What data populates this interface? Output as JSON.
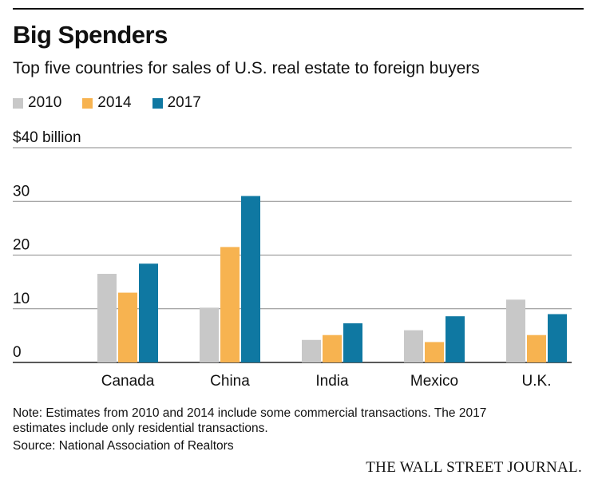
{
  "chart_data": {
    "type": "bar",
    "title": "Big Spenders",
    "subtitle": "Top five countries for sales of U.S. real estate to foreign buyers",
    "unit_label": "$40 billion",
    "categories": [
      "Canada",
      "China",
      "India",
      "Mexico",
      "U.K."
    ],
    "series": [
      {
        "name": "2010",
        "color": "#c8c8c8",
        "values": [
          16.5,
          10.2,
          4.2,
          6.0,
          11.7
        ]
      },
      {
        "name": "2014",
        "color": "#f7b350",
        "values": [
          13.0,
          21.5,
          5.1,
          3.8,
          5.1
        ]
      },
      {
        "name": "2017",
        "color": "#0f78a2",
        "values": [
          18.4,
          31.0,
          7.3,
          8.6,
          9.0
        ]
      }
    ],
    "ylim": [
      0,
      40
    ],
    "yticks": [
      0,
      10,
      20,
      30,
      40
    ],
    "ytick_labels": [
      "0",
      "10",
      "20",
      "30",
      "$40 billion"
    ],
    "grid": true,
    "legend_position": "top-left"
  },
  "note_lines": [
    "Note: Estimates from 2010 and 2014 include some commercial transactions. The 2017",
    "estimates include only residential transactions."
  ],
  "source": "Source: National Association of Realtors",
  "publisher": "THE WALL STREET JOURNAL."
}
